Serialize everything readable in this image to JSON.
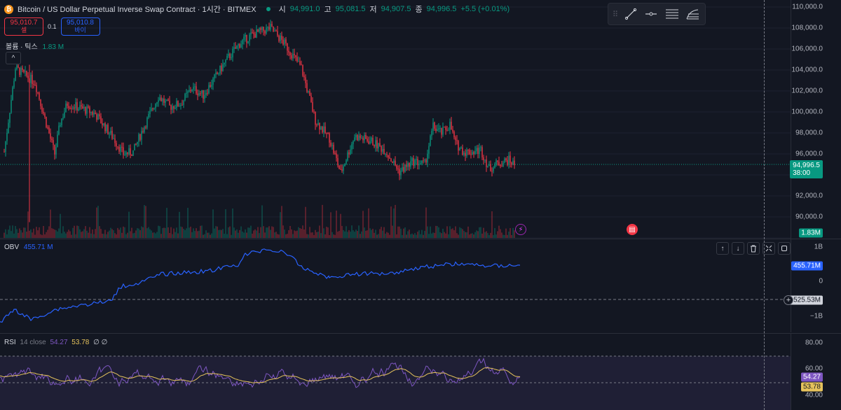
{
  "symbol": {
    "title": "Bitcoin / US Dollar Perpetual Inverse Swap Contract · 1시간 · BITMEX",
    "coin_glyph": "₿",
    "ohlc": [
      {
        "k": "시",
        "v": "94,991.0"
      },
      {
        "k": "고",
        "v": "95,081.5"
      },
      {
        "k": "저",
        "v": "94,907.5"
      },
      {
        "k": "종",
        "v": "94,996.5"
      }
    ],
    "change": "+5.5 (+0.01%)"
  },
  "trade": {
    "sell_price": "95,010.7",
    "sell_label": "셀",
    "spread": "0.1",
    "buy_price": "95,010.8",
    "buy_label": "바이"
  },
  "volume_legend": {
    "name": "볼륨 · 틱스",
    "value": "1.83 M"
  },
  "collapse_glyph": "^",
  "drawing_tools": [
    "trend-line",
    "horizontal-ray",
    "parallel-channel",
    "fib-retracement"
  ],
  "price_axis": {
    "ticks": [
      "110,000.0",
      "108,000.0",
      "106,000.0",
      "104,000.0",
      "102,000.0",
      "100,000.0",
      "98,000.0",
      "96,000.0",
      "92,000.0",
      "90,000.0"
    ],
    "last_price": "94,996.5",
    "countdown": "38:00",
    "volume_label": "1.83M"
  },
  "obv": {
    "name": "OBV",
    "value": "455.71 M",
    "axis_ticks": [
      "1B",
      "0",
      "−1B"
    ],
    "value_label": "455.71M",
    "crosshair_label": "−525.53M",
    "controls": [
      "↑",
      "↓",
      "🗑",
      "✕",
      "⟲"
    ]
  },
  "rsi": {
    "name": "RSI",
    "params": "14 close",
    "value1": "54.27",
    "value2": "53.78",
    "extra": "∅ ∅",
    "axis_ticks": [
      "80.00",
      "60.00",
      "40.00"
    ],
    "label1": "54.27",
    "label2": "53.78"
  },
  "colors": {
    "bg": "#131722",
    "up": "#089981",
    "down": "#f23645",
    "obv_line": "#2962ff",
    "rsi_line": "#7e57c2",
    "rsi_ma": "#e6c35c"
  }
}
